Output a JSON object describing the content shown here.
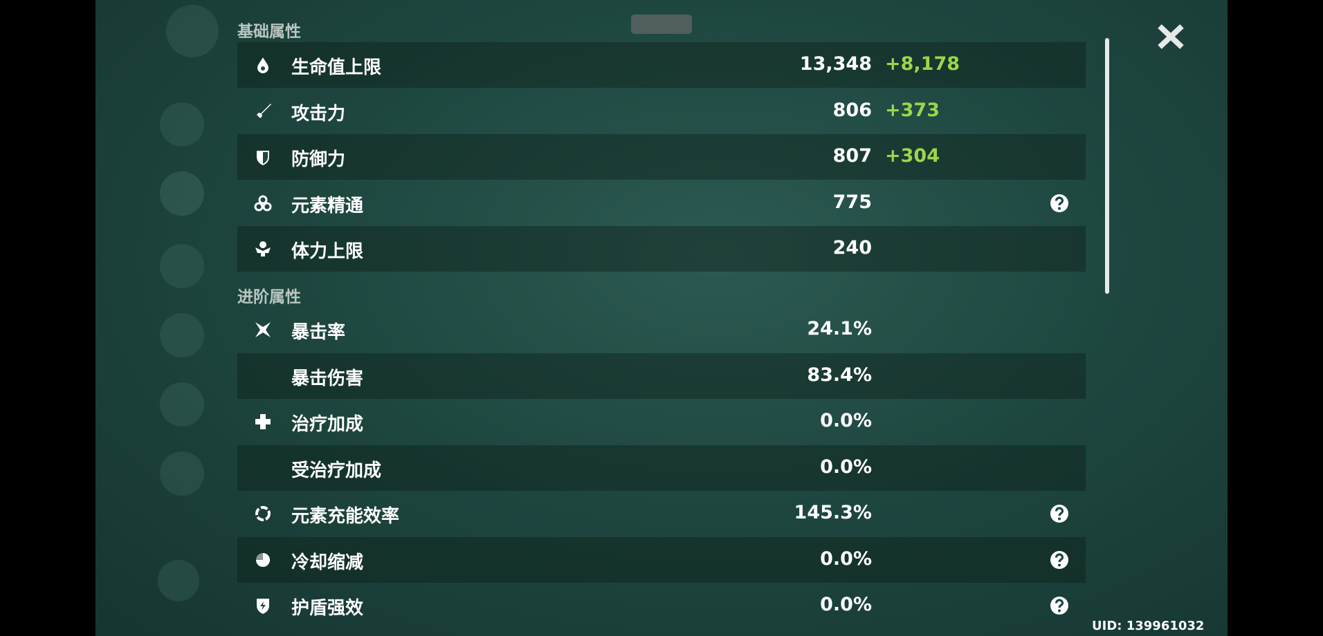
{
  "sections": [
    {
      "title": "基础属性",
      "rows": [
        {
          "name": "生命值上限",
          "value": "13,348",
          "bonus": "+8,178"
        },
        {
          "name": "攻击力",
          "value": "806",
          "bonus": "+373"
        },
        {
          "name": "防御力",
          "value": "807",
          "bonus": "+304"
        },
        {
          "name": "元素精通",
          "value": "775"
        },
        {
          "name": "体力上限",
          "value": "240"
        }
      ]
    },
    {
      "title": "进阶属性",
      "rows": [
        {
          "name": "暴击率",
          "value": "24.1%"
        },
        {
          "name": "暴击伤害",
          "value": "83.4%"
        },
        {
          "name": "治疗加成",
          "value": "0.0%"
        },
        {
          "name": "受治疗加成",
          "value": "0.0%"
        },
        {
          "name": "元素充能效率",
          "value": "145.3%"
        },
        {
          "name": "冷却缩减",
          "value": "0.0%"
        },
        {
          "name": "护盾强效",
          "value": "0.0%"
        }
      ]
    }
  ],
  "uid": "UID: 139961032"
}
